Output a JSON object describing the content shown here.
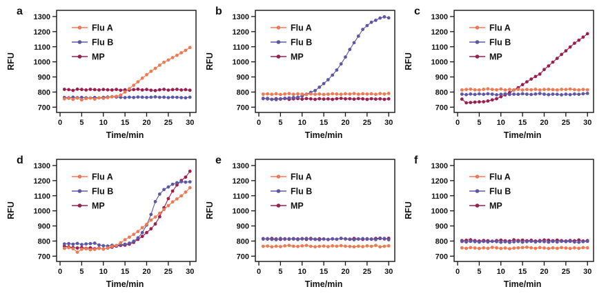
{
  "figure_name": "fluorescence-amplification-curves",
  "chart_data": {
    "type": "line",
    "x_label": "Time/min",
    "y_label": "RFU",
    "x": [
      1,
      2,
      3,
      4,
      5,
      6,
      7,
      8,
      9,
      10,
      11,
      12,
      13,
      14,
      15,
      16,
      17,
      18,
      19,
      20,
      21,
      22,
      23,
      24,
      25,
      26,
      27,
      28,
      29,
      30
    ],
    "x_ticks": [
      0,
      5,
      10,
      15,
      20,
      25,
      30
    ],
    "y_ticks": [
      700,
      800,
      900,
      1000,
      1100,
      1200,
      1300
    ],
    "xlim": [
      -0.8,
      31.4
    ],
    "ylim": [
      665,
      1341
    ],
    "grid": false,
    "legend_position": "upper-left",
    "legend": [
      "Flu A",
      "Flu B",
      "MP"
    ],
    "colors": {
      "flu_a": "#ED7A52",
      "flu_b": "#5D57A6",
      "mp": "#9C1E4C",
      "axis": "#111111"
    },
    "panels": [
      {
        "label": "a",
        "series": [
          {
            "name": "Flu A",
            "color": "#ED7A52",
            "values": [
              755,
              758,
              752,
              760,
              748,
              757,
              760,
              753,
              762,
              758,
              763,
              768,
              772,
              780,
              800,
              822,
              845,
              868,
              892,
              915,
              937,
              957,
              978,
              997,
              1012,
              1028,
              1043,
              1060,
              1076,
              1095
            ]
          },
          {
            "name": "Flu B",
            "color": "#5D57A6",
            "values": [
              764,
              762,
              766,
              763,
              765,
              762,
              761,
              764,
              762,
              765,
              767,
              769,
              767,
              765,
              763,
              766,
              764,
              767,
              766,
              764,
              766,
              768,
              765,
              766,
              763,
              766,
              765,
              763,
              762,
              766
            ]
          },
          {
            "name": "MP",
            "color": "#9C1E4C",
            "values": [
              818,
              816,
              811,
              819,
              817,
              814,
              818,
              816,
              814,
              817,
              815,
              814,
              817,
              812,
              815,
              813,
              816,
              819,
              814,
              817,
              812,
              810,
              815,
              818,
              813,
              816,
              818,
              814,
              816,
              812
            ]
          }
        ]
      },
      {
        "label": "b",
        "series": [
          {
            "name": "Flu A",
            "color": "#ED7A52",
            "values": [
              786,
              788,
              785,
              789,
              784,
              787,
              790,
              785,
              789,
              786,
              784,
              788,
              785,
              787,
              784,
              786,
              789,
              787,
              785,
              789,
              787,
              790,
              786,
              789,
              787,
              789,
              785,
              790,
              787,
              791
            ]
          },
          {
            "name": "Flu B",
            "color": "#5D57A6",
            "values": [
              756,
              758,
              752,
              750,
              756,
              759,
              761,
              763,
              766,
              774,
              786,
              798,
              810,
              832,
              856,
              882,
              912,
              946,
              986,
              1032,
              1082,
              1127,
              1170,
              1215,
              1240,
              1262,
              1275,
              1290,
              1298,
              1291
            ]
          },
          {
            "name": "MP",
            "color": "#9C1E4C",
            "values": [
              758,
              755,
              752,
              756,
              753,
              757,
              752,
              755,
              757,
              753,
              757,
              755,
              752,
              756,
              753,
              755,
              752,
              756,
              758,
              755,
              756,
              753,
              757,
              755,
              752,
              756,
              753,
              755,
              752,
              755
            ]
          }
        ]
      },
      {
        "label": "c",
        "series": [
          {
            "name": "Flu A",
            "color": "#ED7A52",
            "values": [
              814,
              817,
              819,
              815,
              814,
              818,
              821,
              817,
              815,
              820,
              814,
              817,
              815,
              818,
              814,
              817,
              815,
              818,
              814,
              817,
              818,
              816,
              814,
              818,
              817,
              820,
              816,
              814,
              817,
              815
            ]
          },
          {
            "name": "Flu B",
            "color": "#5D57A6",
            "values": [
              786,
              783,
              787,
              784,
              788,
              785,
              789,
              786,
              782,
              785,
              788,
              784,
              786,
              785,
              789,
              786,
              784,
              787,
              790,
              786,
              783,
              786,
              785,
              782,
              786,
              783,
              787,
              785,
              789,
              791
            ]
          },
          {
            "name": "MP",
            "color": "#9C1E4C",
            "values": [
              753,
              729,
              731,
              733,
              735,
              736,
              741,
              748,
              756,
              769,
              781,
              796,
              814,
              829,
              849,
              868,
              886,
              903,
              919,
              949,
              973,
              998,
              1023,
              1049,
              1073,
              1098,
              1123,
              1143,
              1164,
              1186
            ]
          }
        ]
      },
      {
        "label": "d",
        "series": [
          {
            "name": "Flu A",
            "color": "#ED7A52",
            "values": [
              752,
              756,
              749,
              726,
              746,
              749,
              742,
              745,
              751,
              747,
              754,
              764,
              771,
              789,
              809,
              826,
              844,
              863,
              889,
              911,
              939,
              959,
              984,
              1009,
              1034,
              1059,
              1079,
              1099,
              1124,
              1153
            ]
          },
          {
            "name": "Flu B",
            "color": "#5D57A6",
            "values": [
              781,
              783,
              779,
              784,
              777,
              781,
              783,
              786,
              774,
              769,
              767,
              772,
              769,
              775,
              779,
              786,
              799,
              821,
              856,
              906,
              976,
              1061,
              1111,
              1141,
              1158,
              1176,
              1186,
              1193,
              1190,
              1192
            ]
          },
          {
            "name": "MP",
            "color": "#9C1E4C",
            "values": [
              766,
              761,
              757,
              754,
              757,
              752,
              755,
              749,
              753,
              747,
              753,
              759,
              766,
              771,
              773,
              779,
              791,
              811,
              831,
              856,
              881,
              913,
              961,
              1021,
              1081,
              1131,
              1171,
              1201,
              1223,
              1262
            ]
          }
        ]
      },
      {
        "label": "e",
        "series": [
          {
            "name": "Flu A",
            "color": "#ED7A52",
            "values": [
              765,
              767,
              762,
              766,
              763,
              768,
              771,
              766,
              764,
              768,
              771,
              765,
              762,
              765,
              767,
              763,
              768,
              766,
              769,
              766,
              764,
              762,
              766,
              763,
              768,
              765,
              771,
              762,
              765,
              768
            ]
          },
          {
            "name": "Flu B",
            "color": "#5D57A6",
            "values": [
              813,
              816,
              811,
              809,
              817,
              812,
              815,
              813,
              810,
              814,
              817,
              813,
              811,
              809,
              813,
              810,
              814,
              812,
              817,
              814,
              811,
              809,
              813,
              816,
              812,
              814,
              810,
              816,
              817,
              809
            ]
          },
          {
            "name": "MP",
            "color": "#9C1E4C",
            "values": [
              816,
              813,
              817,
              814,
              811,
              815,
              812,
              816,
              814,
              816,
              811,
              817,
              813,
              815,
              814,
              811,
              815,
              812,
              818,
              815,
              813,
              817,
              814,
              811,
              815,
              812,
              817,
              819,
              814,
              818
            ]
          }
        ]
      },
      {
        "label": "f",
        "series": [
          {
            "name": "Flu A",
            "color": "#ED7A52",
            "values": [
              755,
              752,
              757,
              754,
              751,
              755,
              752,
              758,
              755,
              751,
              754,
              749,
              753,
              755,
              757,
              759,
              755,
              752,
              757,
              754,
              751,
              755,
              752,
              757,
              754,
              751,
              755,
              752,
              757,
              755
            ]
          },
          {
            "name": "Flu B",
            "color": "#5D57A6",
            "values": [
              797,
              794,
              798,
              796,
              793,
              797,
              794,
              798,
              796,
              792,
              795,
              791,
              795,
              797,
              793,
              796,
              798,
              794,
              797,
              796,
              793,
              797,
              794,
              798,
              796,
              798,
              794,
              792,
              796,
              798
            ]
          },
          {
            "name": "MP",
            "color": "#9C1E4C",
            "values": [
              803,
              805,
              808,
              803,
              800,
              804,
              802,
              799,
              803,
              806,
              802,
              800,
              808,
              804,
              806,
              802,
              805,
              800,
              803,
              807,
              805,
              802,
              806,
              803,
              800,
              804,
              802,
              807,
              800,
              803
            ]
          }
        ]
      }
    ]
  }
}
